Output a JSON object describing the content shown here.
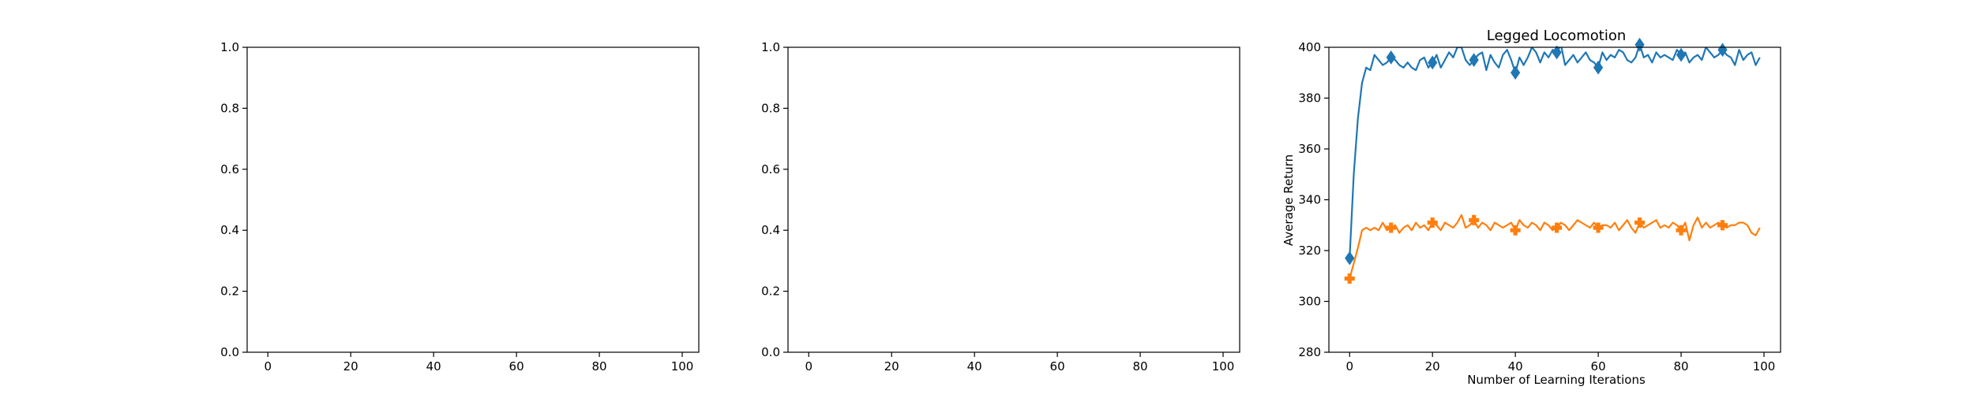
{
  "chart_data": [
    {
      "type": "line",
      "title": "",
      "xlabel": "",
      "ylabel": "",
      "xlim": [
        -5,
        104
      ],
      "ylim": [
        0,
        1
      ],
      "xticks": [
        "0",
        "20",
        "40",
        "60",
        "80",
        "100"
      ],
      "yticks": [
        "0.0",
        "0.2",
        "0.4",
        "0.6",
        "0.8",
        "1.0"
      ],
      "series": []
    },
    {
      "type": "line",
      "title": "",
      "xlabel": "",
      "ylabel": "",
      "xlim": [
        -5,
        104
      ],
      "ylim": [
        0,
        1
      ],
      "xticks": [
        "0",
        "20",
        "40",
        "60",
        "80",
        "100"
      ],
      "yticks": [
        "0.0",
        "0.2",
        "0.4",
        "0.6",
        "0.8",
        "1.0"
      ],
      "series": []
    },
    {
      "type": "line",
      "title": "Legged Locomotion",
      "xlabel": "Number of Learning Iterations",
      "ylabel": "Average Return",
      "xlim": [
        -5,
        104
      ],
      "ylim": [
        280,
        400
      ],
      "xticks": [
        "0",
        "20",
        "40",
        "60",
        "80",
        "100"
      ],
      "yticks": [
        "280",
        "300",
        "320",
        "340",
        "360",
        "380",
        "400"
      ],
      "grid": false,
      "series": [
        {
          "color": "#1f77b4",
          "marker": "diamond",
          "marker_every": 10,
          "values": [
            317,
            350,
            372,
            386,
            392,
            391,
            397,
            395,
            393,
            394,
            396,
            395,
            393,
            392,
            394,
            392,
            391,
            395,
            396,
            392,
            394,
            397,
            392,
            395,
            398,
            396,
            400,
            400,
            395,
            393,
            395,
            397,
            398,
            391,
            397,
            394,
            392,
            397,
            399,
            395,
            390,
            396,
            393,
            396,
            400,
            398,
            394,
            398,
            396,
            399,
            398,
            401,
            393,
            395,
            397,
            394,
            396,
            398,
            395,
            394,
            392,
            398,
            395,
            397,
            396,
            399,
            398,
            395,
            394,
            396,
            401,
            396,
            397,
            394,
            398,
            396,
            397,
            396,
            395,
            399,
            397,
            398,
            394,
            396,
            397,
            395,
            400,
            398,
            396,
            397,
            399,
            397,
            396,
            393,
            399,
            395,
            397,
            398,
            393,
            396
          ]
        },
        {
          "color": "#ff7f0e",
          "marker": "plus",
          "marker_every": 10,
          "values": [
            309,
            315,
            321,
            328,
            329,
            328,
            329,
            328,
            331,
            328,
            329,
            330,
            327,
            329,
            330,
            328,
            331,
            329,
            330,
            328,
            331,
            330,
            328,
            331,
            330,
            329,
            331,
            334,
            329,
            330,
            332,
            329,
            331,
            330,
            328,
            331,
            330,
            329,
            330,
            331,
            328,
            332,
            330,
            329,
            331,
            330,
            328,
            331,
            330,
            328,
            329,
            331,
            330,
            328,
            330,
            332,
            331,
            330,
            329,
            331,
            329,
            330,
            330,
            329,
            331,
            328,
            330,
            332,
            329,
            327,
            331,
            329,
            330,
            331,
            332,
            329,
            330,
            329,
            331,
            330,
            328,
            331,
            324,
            330,
            333,
            329,
            331,
            329,
            330,
            331,
            330,
            329,
            330,
            330,
            331,
            331,
            330,
            327,
            326,
            329
          ]
        }
      ]
    }
  ]
}
